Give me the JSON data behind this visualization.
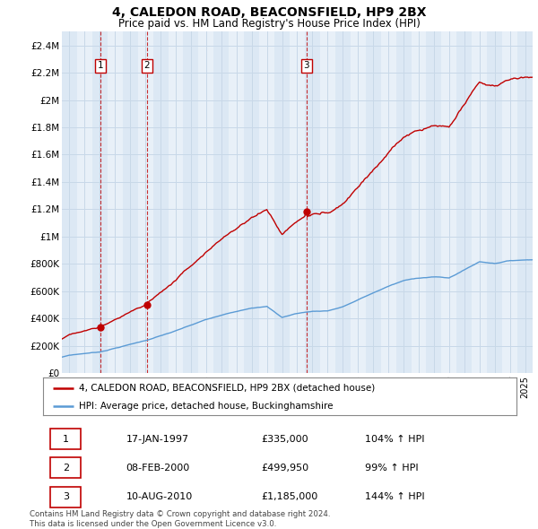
{
  "title": "4, CALEDON ROAD, BEACONSFIELD, HP9 2BX",
  "subtitle": "Price paid vs. HM Land Registry's House Price Index (HPI)",
  "ylim": [
    0,
    2500000
  ],
  "yticks": [
    0,
    200000,
    400000,
    600000,
    800000,
    1000000,
    1200000,
    1400000,
    1600000,
    1800000,
    2000000,
    2200000,
    2400000
  ],
  "ytick_labels": [
    "£0",
    "£200K",
    "£400K",
    "£600K",
    "£800K",
    "£1M",
    "£1.2M",
    "£1.4M",
    "£1.6M",
    "£1.8M",
    "£2M",
    "£2.2M",
    "£2.4M"
  ],
  "xlim_start": 1994.5,
  "xlim_end": 2025.5,
  "sale_dates": [
    1997.04,
    2000.11,
    2010.61
  ],
  "sale_prices": [
    335000,
    499950,
    1185000
  ],
  "sale_labels": [
    "1",
    "2",
    "3"
  ],
  "hpi_color": "#5b9bd5",
  "price_color": "#c00000",
  "grid_color": "#c8d8e8",
  "background_color_even": "#dce8f4",
  "background_color_odd": "#e8f0f8",
  "legend_label_price": "4, CALEDON ROAD, BEACONSFIELD, HP9 2BX (detached house)",
  "legend_label_hpi": "HPI: Average price, detached house, Buckinghamshire",
  "table_rows": [
    [
      "1",
      "17-JAN-1997",
      "£335,000",
      "104% ↑ HPI"
    ],
    [
      "2",
      "08-FEB-2000",
      "£499,950",
      "99% ↑ HPI"
    ],
    [
      "3",
      "10-AUG-2010",
      "£1,185,000",
      "144% ↑ HPI"
    ]
  ],
  "footnote": "Contains HM Land Registry data © Crown copyright and database right 2024.\nThis data is licensed under the Open Government Licence v3.0."
}
